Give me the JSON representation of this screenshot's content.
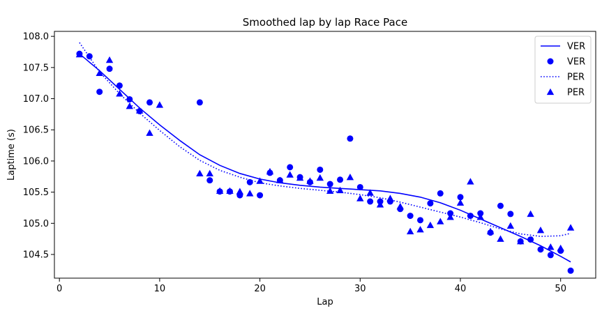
{
  "chart_data": {
    "type": "scatter",
    "title": "Smoothed lap by lap Race Pace",
    "xlabel": "Lap",
    "ylabel": "Laptime (s)",
    "xlim": [
      -0.5,
      53.5
    ],
    "ylim": [
      104.12,
      108.08
    ],
    "xticks": [
      0,
      10,
      20,
      30,
      40,
      50
    ],
    "yticks": [
      104.5,
      105.0,
      105.5,
      106.0,
      106.5,
      107.0,
      107.5,
      108.0
    ],
    "ytick_labels": [
      "104.5",
      "105.0",
      "105.5",
      "106.0",
      "106.5",
      "107.0",
      "107.5",
      "108.0"
    ],
    "grid": false,
    "legend_position": "top-right",
    "colors": {
      "series": "#0000ff"
    },
    "series": [
      {
        "name": "VER",
        "kind": "line",
        "style": "solid",
        "x": [
          2,
          4,
          6,
          8,
          10,
          12,
          14,
          16,
          18,
          20,
          22,
          24,
          26,
          28,
          30,
          32,
          34,
          36,
          38,
          40,
          42,
          44,
          46,
          48,
          50,
          51
        ],
        "y": [
          107.72,
          107.45,
          107.15,
          106.85,
          106.58,
          106.33,
          106.1,
          105.93,
          105.8,
          105.71,
          105.65,
          105.61,
          105.58,
          105.56,
          105.54,
          105.52,
          105.48,
          105.42,
          105.33,
          105.21,
          105.07,
          104.93,
          104.79,
          104.64,
          104.47,
          104.38
        ]
      },
      {
        "name": "VER",
        "kind": "scatter",
        "marker": "circle",
        "x": [
          2,
          3,
          4,
          5,
          6,
          7,
          8,
          9,
          14,
          15,
          16,
          17,
          18,
          19,
          20,
          21,
          22,
          23,
          24,
          25,
          26,
          27,
          28,
          29,
          30,
          31,
          32,
          33,
          34,
          35,
          36,
          37,
          38,
          39,
          40,
          41,
          42,
          43,
          44,
          45,
          46,
          47,
          48,
          49,
          50,
          51
        ],
        "y": [
          107.72,
          107.68,
          107.11,
          107.48,
          107.21,
          106.99,
          106.8,
          106.94,
          106.94,
          105.69,
          105.51,
          105.51,
          105.45,
          105.66,
          105.45,
          105.81,
          105.69,
          105.9,
          105.74,
          105.66,
          105.86,
          105.63,
          105.7,
          106.36,
          105.58,
          105.35,
          105.35,
          105.35,
          105.23,
          105.12,
          105.05,
          105.32,
          105.48,
          105.16,
          105.42,
          105.12,
          105.16,
          104.85,
          105.28,
          105.15,
          104.71,
          104.74,
          104.58,
          104.49,
          104.56,
          104.24
        ]
      },
      {
        "name": "PER",
        "kind": "line",
        "style": "dotted",
        "x": [
          2,
          4,
          6,
          8,
          10,
          12,
          14,
          16,
          18,
          20,
          22,
          24,
          26,
          28,
          30,
          32,
          34,
          36,
          38,
          40,
          42,
          44,
          46,
          48,
          50,
          51
        ],
        "y": [
          107.9,
          107.43,
          107.08,
          106.77,
          106.49,
          106.23,
          106.01,
          105.85,
          105.74,
          105.65,
          105.6,
          105.56,
          105.53,
          105.5,
          105.46,
          105.41,
          105.34,
          105.26,
          105.18,
          105.1,
          105.01,
          104.91,
          104.83,
          104.79,
          104.8,
          104.84
        ]
      },
      {
        "name": "PER",
        "kind": "scatter",
        "marker": "triangle",
        "x": [
          2,
          4,
          5,
          6,
          7,
          8,
          9,
          10,
          14,
          15,
          16,
          17,
          18,
          19,
          20,
          21,
          22,
          23,
          24,
          25,
          26,
          27,
          28,
          29,
          30,
          31,
          32,
          33,
          34,
          35,
          36,
          37,
          38,
          39,
          40,
          41,
          42,
          43,
          44,
          45,
          46,
          47,
          48,
          49,
          50,
          51
        ],
        "y": [
          107.71,
          107.41,
          107.62,
          107.08,
          106.88,
          106.81,
          106.45,
          106.9,
          105.8,
          105.8,
          105.52,
          105.52,
          105.51,
          105.48,
          105.68,
          105.83,
          105.69,
          105.78,
          105.73,
          105.68,
          105.73,
          105.52,
          105.53,
          105.74,
          105.4,
          105.49,
          105.3,
          105.4,
          105.27,
          104.87,
          104.9,
          104.97,
          105.03,
          105.1,
          105.33,
          105.67,
          105.1,
          104.87,
          104.75,
          104.96,
          104.71,
          105.15,
          104.89,
          104.62,
          104.6,
          104.93
        ]
      }
    ]
  }
}
